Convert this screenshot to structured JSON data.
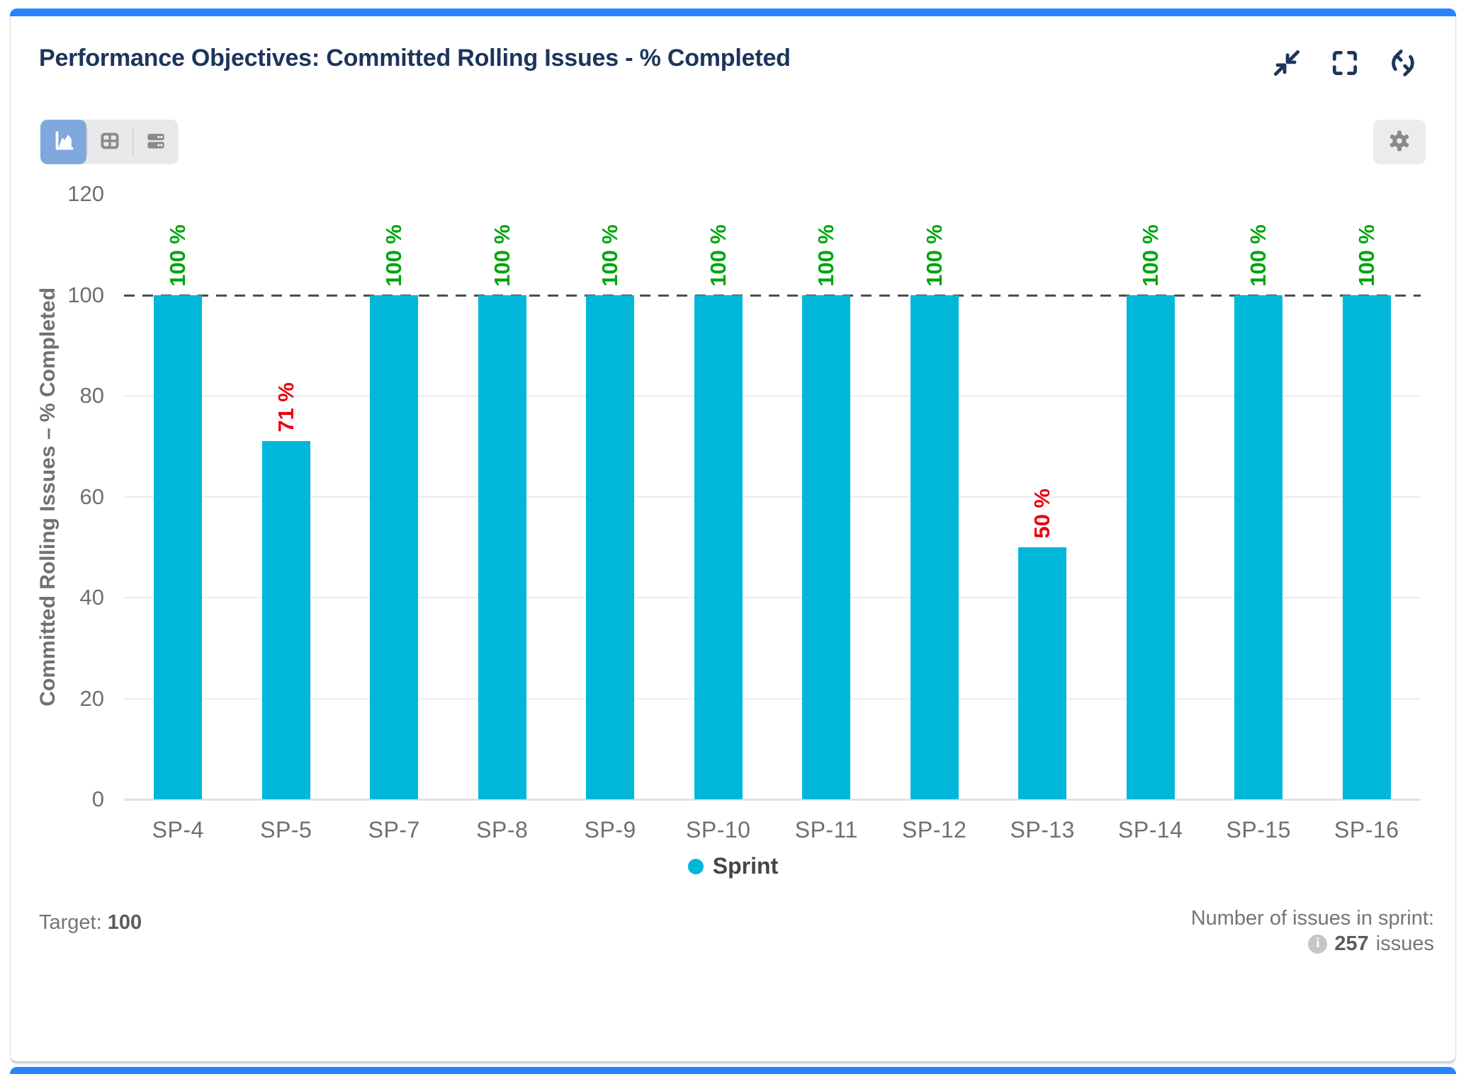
{
  "header": {
    "title": "Performance Objectives: Committed Rolling Issues - % Completed",
    "icons": [
      "minimize-icon",
      "fullscreen-icon",
      "refresh-icon"
    ]
  },
  "toolbar": {
    "view_buttons": [
      {
        "name": "chart-view",
        "icon": "area-chart-icon",
        "active": true
      },
      {
        "name": "table-view",
        "icon": "table-grid-icon",
        "active": false
      },
      {
        "name": "list-view",
        "icon": "stacked-rows-icon",
        "active": false
      }
    ],
    "settings_icon": "gear-icon"
  },
  "chart_data": {
    "type": "bar",
    "title": "",
    "categories": [
      "SP-4",
      "SP-5",
      "SP-7",
      "SP-8",
      "SP-9",
      "SP-10",
      "SP-11",
      "SP-12",
      "SP-13",
      "SP-14",
      "SP-15",
      "SP-16"
    ],
    "values": [
      100,
      71,
      100,
      100,
      100,
      100,
      100,
      100,
      50,
      100,
      100,
      100
    ],
    "value_labels": [
      "100 %",
      "71 %",
      "100 %",
      "100 %",
      "100 %",
      "100 %",
      "100 %",
      "100 %",
      "50 %",
      "100 %",
      "100 %",
      "100 %"
    ],
    "xlabel": "",
    "ylabel": "Committed Rolling Issues – % Completed",
    "ylim": [
      0,
      120
    ],
    "yticks": [
      0,
      20,
      40,
      60,
      80,
      100,
      120
    ],
    "target_line": 100,
    "grid": true,
    "legend_position": "bottom",
    "legend": {
      "label": "Sprint"
    }
  },
  "footer": {
    "target_label": "Target:",
    "target_value": "100",
    "issues_label": "Number of issues in sprint:",
    "info_icon": "info-icon",
    "issues_count": "257",
    "issues_suffix": "issues"
  },
  "colors": {
    "accent_blue": "#2684FF",
    "title_navy": "#1c355b",
    "bar_cyan": "#00b7da",
    "label_green": "#02a50f",
    "label_red": "#e8000f",
    "active_button_blue": "#7fa8dc"
  }
}
